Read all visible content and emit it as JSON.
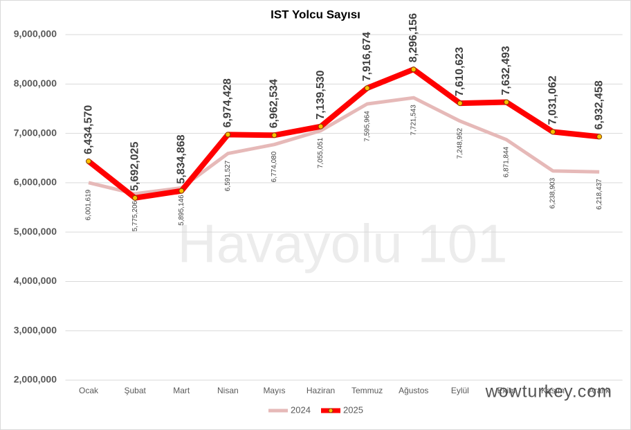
{
  "chart_data": {
    "type": "line",
    "title": "IST Yolcu Sayısı",
    "categories": [
      "Ocak",
      "Şubat",
      "Mart",
      "Nisan",
      "Mayıs",
      "Haziran",
      "Temmuz",
      "Ağustos",
      "Eylül",
      "Ekim",
      "Kasım",
      "Aralık"
    ],
    "series": [
      {
        "name": "2024",
        "color": "#e6b9b8",
        "values": [
          6001619,
          5775206,
          5895146,
          6591527,
          6774080,
          7055051,
          7595964,
          7721543,
          7248952,
          6871844,
          6238903,
          6218437
        ],
        "value_labels": [
          "6,001,619",
          "5,775,206",
          "5,895,146",
          "6,591,527",
          "6,774,080",
          "7,055,051",
          "7,595,964",
          "7,721,543",
          "7,248,952",
          "6,871,844",
          "6,238,903",
          "6,218,437"
        ]
      },
      {
        "name": "2025",
        "color": "#ff0000",
        "values": [
          6434570,
          5692025,
          5834868,
          6974428,
          6962534,
          7139530,
          7916674,
          8296156,
          7610623,
          7632493,
          7031062,
          6932458
        ],
        "value_labels": [
          "6,434,570",
          "5,692,025",
          "5,834,868",
          "6,974,428",
          "6,962,534",
          "7,139,530",
          "7,916,674",
          "8,296,156",
          "7,610,623",
          "7,632,493",
          "7,031,062",
          "6,932,458"
        ]
      }
    ],
    "ylim": [
      2000000,
      9500000
    ],
    "yticks": [
      {
        "value": 2000000,
        "label": "2,000,000"
      },
      {
        "value": 3000000,
        "label": "3,000,000"
      },
      {
        "value": 4000000,
        "label": "4,000,000"
      },
      {
        "value": 5000000,
        "label": "5,000,000"
      },
      {
        "value": 6000000,
        "label": "6,000,000"
      },
      {
        "value": 7000000,
        "label": "7,000,000"
      },
      {
        "value": 8000000,
        "label": "8,000,000"
      },
      {
        "value": 9000000,
        "label": "9,000,000"
      }
    ],
    "grid": true,
    "legend": "bottom",
    "watermarks": [
      "Havayolu 101",
      "wowturkey.com"
    ]
  }
}
